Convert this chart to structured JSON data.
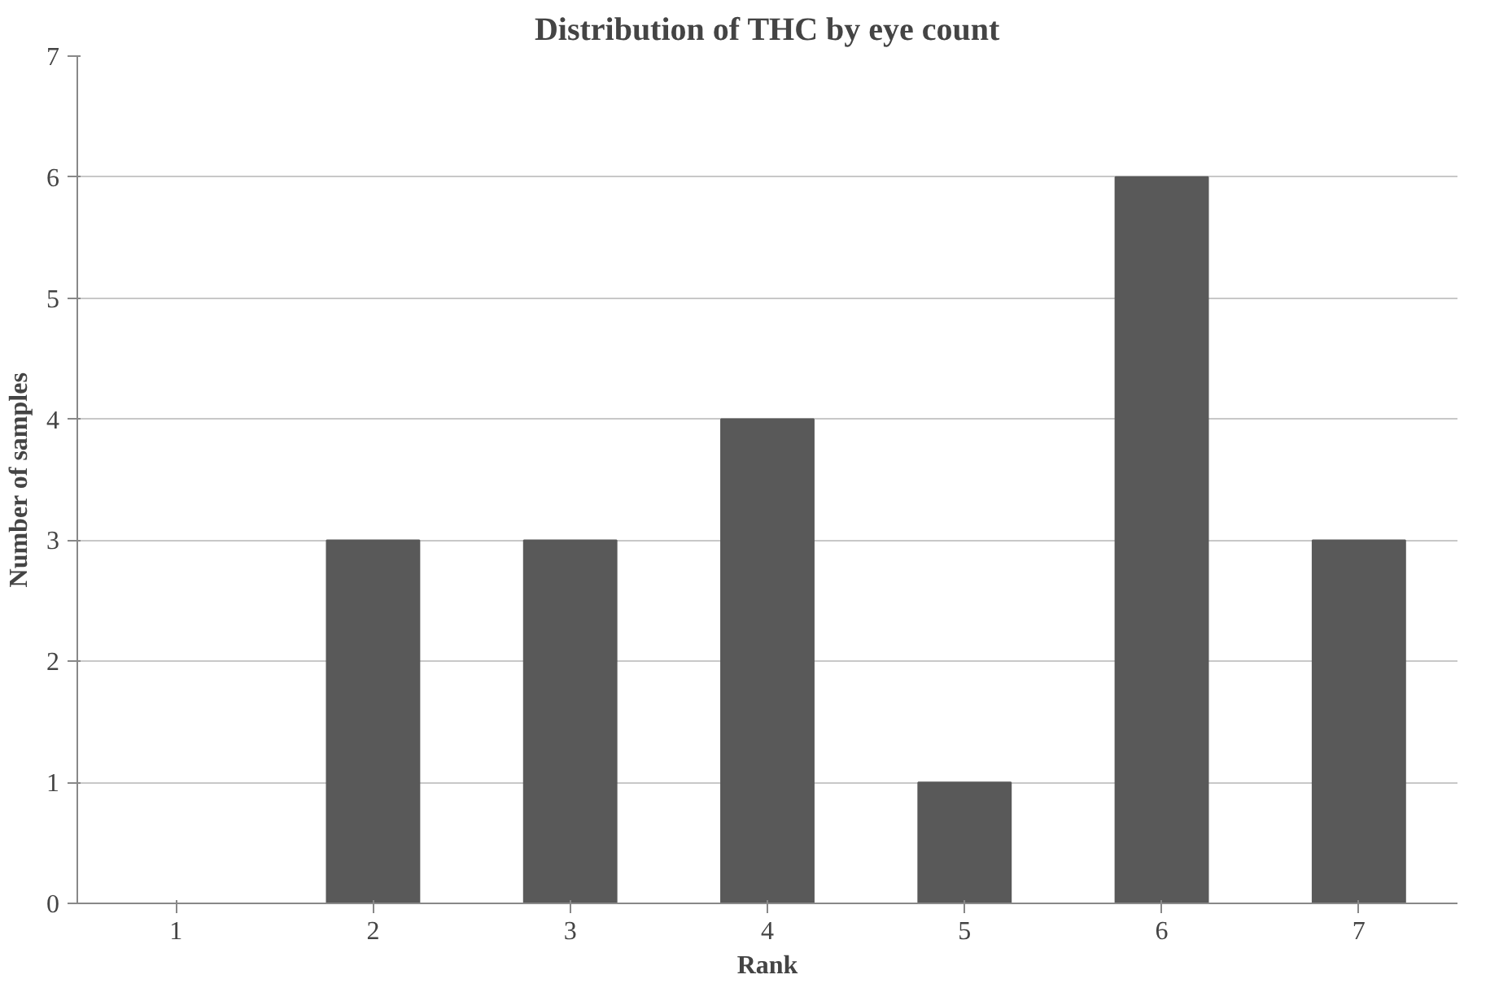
{
  "chart_data": {
    "type": "bar",
    "title": "Distribution of THC by eye count",
    "xlabel": "Rank",
    "ylabel": "Number of samples",
    "categories": [
      "1",
      "2",
      "3",
      "4",
      "5",
      "6",
      "7"
    ],
    "values": [
      0,
      3,
      3,
      4,
      1,
      6,
      3
    ],
    "color": "#595959",
    "ylim": [
      0,
      7
    ],
    "yticks": [
      0,
      1,
      2,
      3,
      4,
      5,
      6,
      7
    ],
    "grid": "y"
  }
}
